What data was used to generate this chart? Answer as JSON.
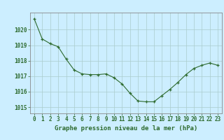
{
  "x": [
    0,
    1,
    2,
    3,
    4,
    5,
    6,
    7,
    8,
    9,
    10,
    11,
    12,
    13,
    14,
    15,
    16,
    17,
    18,
    19,
    20,
    21,
    22,
    23
  ],
  "y": [
    1020.7,
    1019.4,
    1019.1,
    1018.9,
    1018.1,
    1017.4,
    1017.15,
    1017.1,
    1017.1,
    1017.15,
    1016.9,
    1016.5,
    1015.9,
    1015.4,
    1015.35,
    1015.35,
    1015.75,
    1016.15,
    1016.6,
    1017.1,
    1017.5,
    1017.7,
    1017.85,
    1017.7
  ],
  "line_color": "#2d6a2d",
  "marker": "+",
  "marker_size": 3.5,
  "marker_color": "#2d6a2d",
  "bg_color": "#cceeff",
  "grid_color": "#aacccc",
  "xlabel": "Graphe pression niveau de la mer (hPa)",
  "xlabel_color": "#2d6a2d",
  "xlabel_fontsize": 6.5,
  "tick_color": "#2d6a2d",
  "tick_fontsize": 5.5,
  "yticks": [
    1015,
    1016,
    1017,
    1018,
    1019,
    1020
  ],
  "ylim": [
    1014.6,
    1021.1
  ],
  "xlim": [
    -0.5,
    23.5
  ],
  "xticks": [
    0,
    1,
    2,
    3,
    4,
    5,
    6,
    7,
    8,
    9,
    10,
    11,
    12,
    13,
    14,
    15,
    16,
    17,
    18,
    19,
    20,
    21,
    22,
    23
  ]
}
